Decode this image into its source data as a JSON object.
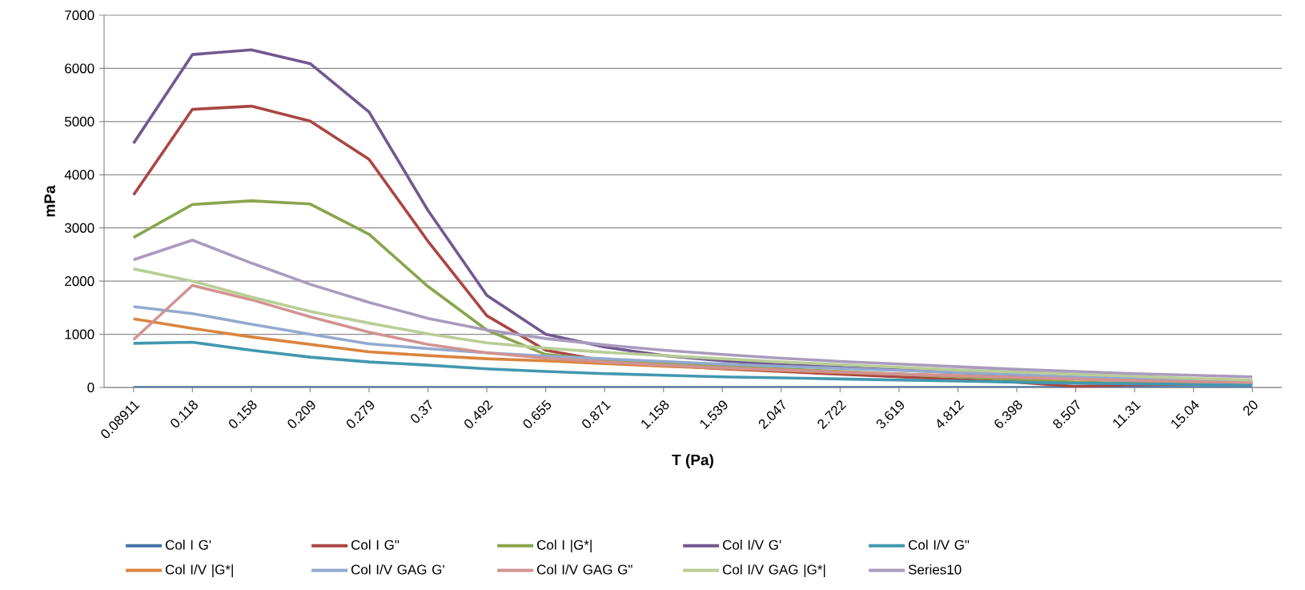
{
  "chart_data": {
    "type": "line",
    "xlabel": "T (Pa)",
    "ylabel": "mPa",
    "categories": [
      "0.08911",
      "0.118",
      "0.158",
      "0.209",
      "0.279",
      "0.37",
      "0.492",
      "0.655",
      "0.871",
      "1.158",
      "1.539",
      "2.047",
      "2.722",
      "3.619",
      "4.812",
      "6.398",
      "8.507",
      "11.31",
      "15.04",
      "20"
    ],
    "ylim": [
      0,
      7000
    ],
    "yticks": [
      0,
      1000,
      2000,
      3000,
      4000,
      5000,
      6000,
      7000
    ],
    "grid": "y",
    "legend": "bottom",
    "series": [
      {
        "name": "Col I G'",
        "color": "#4572a7",
        "values": [
          0,
          0,
          0,
          0,
          0,
          0,
          0,
          0,
          0,
          0,
          0,
          0,
          0,
          0,
          0,
          0,
          0,
          0,
          0,
          0
        ]
      },
      {
        "name": "Col I G\"",
        "color": "#aa4643",
        "values": [
          3620,
          5230,
          5290,
          5010,
          4290,
          2750,
          1350,
          700,
          500,
          420,
          350,
          300,
          250,
          200,
          150,
          100,
          20,
          50,
          60,
          80
        ]
      },
      {
        "name": "Col I |G*|",
        "color": "#89a54e",
        "values": [
          2820,
          3440,
          3510,
          3450,
          2880,
          1900,
          1080,
          620,
          520,
          450,
          400,
          350,
          300,
          250,
          200,
          150,
          100,
          80,
          70,
          60
        ]
      },
      {
        "name": "Col I/V G'",
        "color": "#71588f",
        "values": [
          4590,
          6260,
          6350,
          6090,
          5180,
          3330,
          1730,
          1000,
          760,
          600,
          500,
          430,
          380,
          330,
          280,
          230,
          180,
          150,
          120,
          100
        ]
      },
      {
        "name": "Col I/V G\"",
        "color": "#4198af",
        "values": [
          830,
          850,
          700,
          570,
          480,
          420,
          350,
          300,
          260,
          230,
          200,
          180,
          160,
          140,
          120,
          100,
          80,
          70,
          60,
          50
        ]
      },
      {
        "name": "Col I/V  |G*|",
        "color": "#db843d",
        "values": [
          1290,
          1110,
          950,
          810,
          670,
          600,
          540,
          500,
          450,
          400,
          360,
          320,
          280,
          250,
          220,
          190,
          160,
          130,
          110,
          100
        ]
      },
      {
        "name": "Col I/V GAG G'",
        "color": "#93a9cf",
        "values": [
          1520,
          1390,
          1190,
          1000,
          820,
          730,
          650,
          590,
          540,
          490,
          440,
          400,
          360,
          320,
          280,
          240,
          200,
          170,
          140,
          120
        ]
      },
      {
        "name": "Col I/V GAG G\"",
        "color": "#d19392",
        "values": [
          900,
          1920,
          1650,
          1330,
          1040,
          810,
          650,
          550,
          480,
          420,
          370,
          330,
          290,
          250,
          220,
          190,
          160,
          130,
          110,
          90
        ]
      },
      {
        "name": "Col I/V GAG |G*|",
        "color": "#b9cd96",
        "values": [
          2230,
          2000,
          1700,
          1430,
          1210,
          1010,
          840,
          740,
          660,
          600,
          540,
          480,
          430,
          380,
          330,
          290,
          250,
          210,
          170,
          140
        ]
      },
      {
        "name": "Series10",
        "color": "#a99bbd",
        "values": [
          2400,
          2770,
          2340,
          1940,
          1600,
          1300,
          1080,
          920,
          800,
          700,
          620,
          550,
          490,
          440,
          390,
          340,
          300,
          260,
          230,
          200
        ]
      }
    ]
  }
}
